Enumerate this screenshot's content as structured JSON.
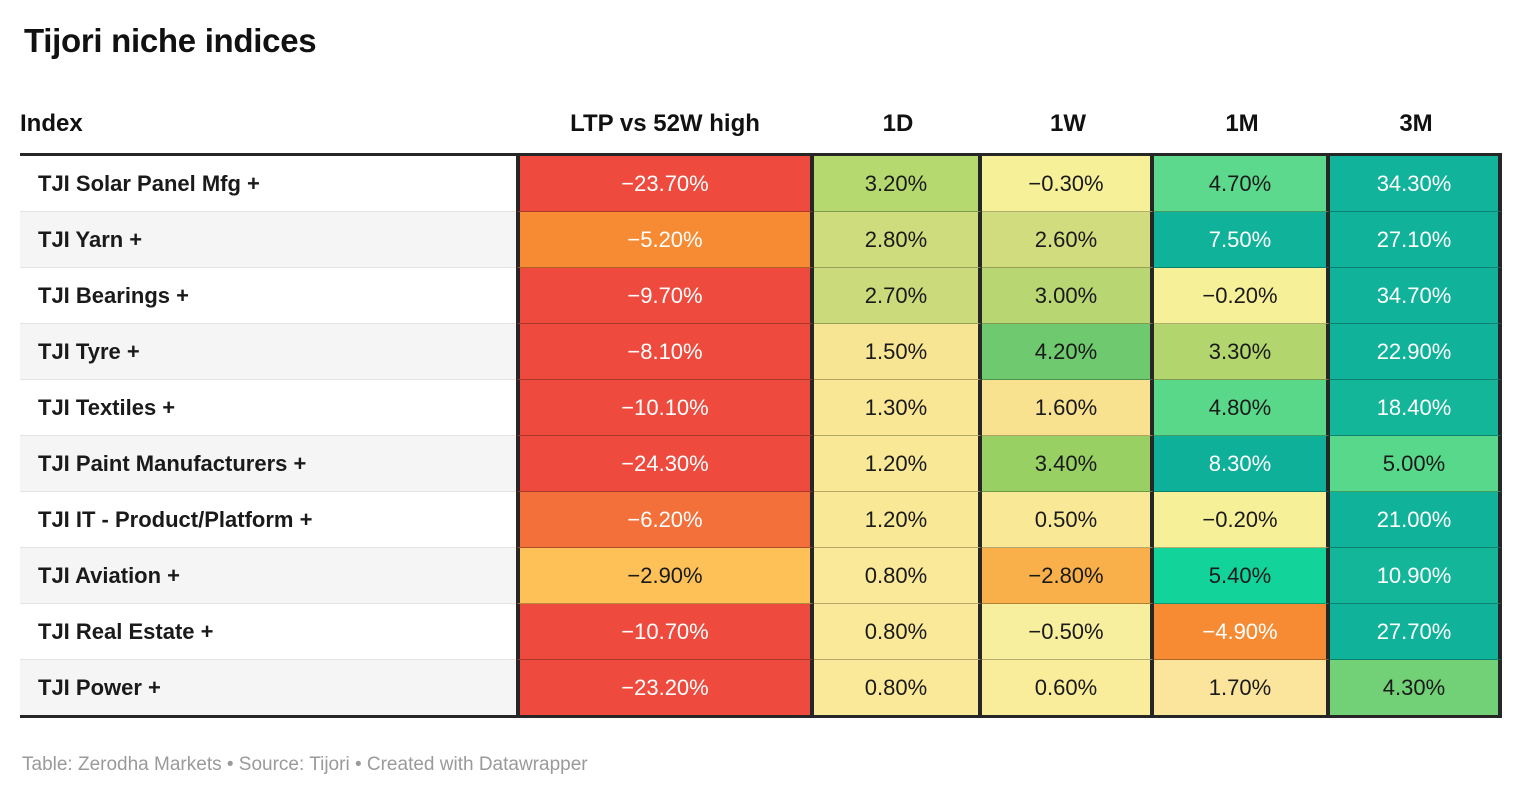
{
  "title": "Tijori niche indices",
  "footer": "Table: Zerodha Markets • Source: Tijori • Created with Datawrapper",
  "table": {
    "header": {
      "index_label": "Index",
      "columns": [
        "LTP vs 52W high",
        "1D",
        "1W",
        "1M",
        "3M"
      ]
    },
    "rows": [
      {
        "index": "TJI Solar Panel Mfg +",
        "cells": [
          {
            "text": "−23.70%",
            "bg": "#ee4b3e",
            "fg": "#ffffff"
          },
          {
            "text": "3.20%",
            "bg": "#b5d96e",
            "fg": "#1a1a1a"
          },
          {
            "text": "−0.30%",
            "bg": "#f6f099",
            "fg": "#1a1a1a"
          },
          {
            "text": "4.70%",
            "bg": "#5cd98c",
            "fg": "#1a1a1a"
          },
          {
            "text": "34.30%",
            "bg": "#11b49b",
            "fg": "#ffffff"
          }
        ]
      },
      {
        "index": "TJI Yarn +",
        "cells": [
          {
            "text": "−5.20%",
            "bg": "#f78b33",
            "fg": "#ffffff"
          },
          {
            "text": "2.80%",
            "bg": "#cfdc7d",
            "fg": "#1a1a1a"
          },
          {
            "text": "2.60%",
            "bg": "#d0dc7d",
            "fg": "#1a1a1a"
          },
          {
            "text": "7.50%",
            "bg": "#11b29a",
            "fg": "#ffffff"
          },
          {
            "text": "27.10%",
            "bg": "#11b29a",
            "fg": "#ffffff"
          }
        ]
      },
      {
        "index": "TJI Bearings +",
        "cells": [
          {
            "text": "−9.70%",
            "bg": "#ee4b3e",
            "fg": "#ffffff"
          },
          {
            "text": "2.70%",
            "bg": "#cbda7a",
            "fg": "#1a1a1a"
          },
          {
            "text": "3.00%",
            "bg": "#b8d671",
            "fg": "#1a1a1a"
          },
          {
            "text": "−0.20%",
            "bg": "#f6f099",
            "fg": "#1a1a1a"
          },
          {
            "text": "34.70%",
            "bg": "#11b29a",
            "fg": "#ffffff"
          }
        ]
      },
      {
        "index": "TJI Tyre +",
        "cells": [
          {
            "text": "−8.10%",
            "bg": "#ee4b3e",
            "fg": "#ffffff"
          },
          {
            "text": "1.50%",
            "bg": "#f8e593",
            "fg": "#1a1a1a"
          },
          {
            "text": "4.20%",
            "bg": "#6fc96f",
            "fg": "#1a1a1a"
          },
          {
            "text": "3.30%",
            "bg": "#b3d56d",
            "fg": "#1a1a1a"
          },
          {
            "text": "22.90%",
            "bg": "#11b29a",
            "fg": "#ffffff"
          }
        ]
      },
      {
        "index": "TJI Textiles +",
        "cells": [
          {
            "text": "−10.10%",
            "bg": "#ee4b3e",
            "fg": "#ffffff"
          },
          {
            "text": "1.30%",
            "bg": "#f9e795",
            "fg": "#1a1a1a"
          },
          {
            "text": "1.60%",
            "bg": "#f8e18f",
            "fg": "#1a1a1a"
          },
          {
            "text": "4.80%",
            "bg": "#59d88a",
            "fg": "#1a1a1a"
          },
          {
            "text": "18.40%",
            "bg": "#14b69a",
            "fg": "#ffffff"
          }
        ]
      },
      {
        "index": "TJI Paint Manufacturers +",
        "cells": [
          {
            "text": "−24.30%",
            "bg": "#ee4b3e",
            "fg": "#ffffff"
          },
          {
            "text": "1.20%",
            "bg": "#f9e896",
            "fg": "#1a1a1a"
          },
          {
            "text": "3.40%",
            "bg": "#98d063",
            "fg": "#1a1a1a"
          },
          {
            "text": "8.30%",
            "bg": "#0fb09a",
            "fg": "#ffffff"
          },
          {
            "text": "5.00%",
            "bg": "#57d88a",
            "fg": "#1a1a1a"
          }
        ]
      },
      {
        "index": "TJI IT - Product/Platform +",
        "cells": [
          {
            "text": "−6.20%",
            "bg": "#f3703a",
            "fg": "#ffffff"
          },
          {
            "text": "1.20%",
            "bg": "#f9e896",
            "fg": "#1a1a1a"
          },
          {
            "text": "0.50%",
            "bg": "#f9e997",
            "fg": "#1a1a1a"
          },
          {
            "text": "−0.20%",
            "bg": "#f6f099",
            "fg": "#1a1a1a"
          },
          {
            "text": "21.00%",
            "bg": "#11b29a",
            "fg": "#ffffff"
          }
        ]
      },
      {
        "index": "TJI Aviation +",
        "cells": [
          {
            "text": "−2.90%",
            "bg": "#fdc157",
            "fg": "#1a1a1a"
          },
          {
            "text": "0.80%",
            "bg": "#fae999",
            "fg": "#1a1a1a"
          },
          {
            "text": "−2.80%",
            "bg": "#f9b04a",
            "fg": "#1a1a1a"
          },
          {
            "text": "5.40%",
            "bg": "#12d49a",
            "fg": "#1a1a1a"
          },
          {
            "text": "10.90%",
            "bg": "#14b69a",
            "fg": "#ffffff"
          }
        ]
      },
      {
        "index": "TJI Real Estate +",
        "cells": [
          {
            "text": "−10.70%",
            "bg": "#ee4b3e",
            "fg": "#ffffff"
          },
          {
            "text": "0.80%",
            "bg": "#fae999",
            "fg": "#1a1a1a"
          },
          {
            "text": "−0.50%",
            "bg": "#f8ef9e",
            "fg": "#1a1a1a"
          },
          {
            "text": "−4.90%",
            "bg": "#f78b33",
            "fg": "#ffffff"
          },
          {
            "text": "27.70%",
            "bg": "#11b29a",
            "fg": "#ffffff"
          }
        ]
      },
      {
        "index": "TJI Power +",
        "cells": [
          {
            "text": "−23.20%",
            "bg": "#ee4b3e",
            "fg": "#ffffff"
          },
          {
            "text": "0.80%",
            "bg": "#fae999",
            "fg": "#1a1a1a"
          },
          {
            "text": "0.60%",
            "bg": "#f9ec9a",
            "fg": "#1a1a1a"
          },
          {
            "text": "1.70%",
            "bg": "#fbe49c",
            "fg": "#1a1a1a"
          },
          {
            "text": "4.30%",
            "bg": "#72d077",
            "fg": "#1a1a1a"
          }
        ]
      }
    ]
  },
  "colors": {
    "strong_negative": "#ee4b3e",
    "negative": "#f78b33",
    "mild_negative": "#fdc157",
    "neutral": "#f6f099",
    "mild_positive": "#b5d96e",
    "positive": "#5cd98c",
    "strong_positive": "#11b29a",
    "table_border": "#262626",
    "row_stripe": "#f5f5f5",
    "footer_text": "#9a9a9a"
  },
  "chart_data": {
    "type": "table",
    "title": "Tijori niche indices",
    "columns": [
      "Index",
      "LTP vs 52W high",
      "1D",
      "1W",
      "1M",
      "3M"
    ],
    "rows": [
      [
        "TJI Solar Panel Mfg +",
        -23.7,
        3.2,
        -0.3,
        4.7,
        34.3
      ],
      [
        "TJI Yarn +",
        -5.2,
        2.8,
        2.6,
        7.5,
        27.1
      ],
      [
        "TJI Bearings +",
        -9.7,
        2.7,
        3.0,
        -0.2,
        34.7
      ],
      [
        "TJI Tyre +",
        -8.1,
        1.5,
        4.2,
        3.3,
        22.9
      ],
      [
        "TJI Textiles +",
        -10.1,
        1.3,
        1.6,
        4.8,
        18.4
      ],
      [
        "TJI Paint Manufacturers +",
        -24.3,
        1.2,
        3.4,
        8.3,
        5.0
      ],
      [
        "TJI IT - Product/Platform +",
        -6.2,
        1.2,
        0.5,
        -0.2,
        21.0
      ],
      [
        "TJI Aviation +",
        -2.9,
        0.8,
        -2.8,
        5.4,
        10.9
      ],
      [
        "TJI Real Estate +",
        -10.7,
        0.8,
        -0.5,
        -4.9,
        27.7
      ],
      [
        "TJI Power +",
        -23.2,
        0.8,
        0.6,
        1.7,
        4.3
      ]
    ],
    "units": "percent",
    "layout_hints": {
      "heatmap_cells": true,
      "color_scale": "red (negative) → yellow (near zero) → green/teal (positive)",
      "striped_index_column": true
    }
  }
}
